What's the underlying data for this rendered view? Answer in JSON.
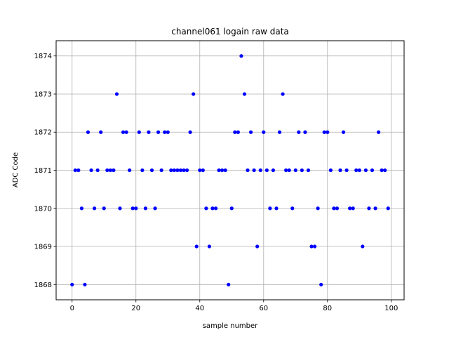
{
  "chart_data": {
    "type": "scatter",
    "title": "channel061 logain raw data",
    "xlabel": "sample number",
    "ylabel": "ADC Code",
    "xlim": [
      -5,
      104
    ],
    "ylim": [
      1867.6,
      1874.4
    ],
    "xticks": [
      0,
      20,
      40,
      60,
      80,
      100
    ],
    "yticks": [
      1868,
      1869,
      1870,
      1871,
      1872,
      1873,
      1874
    ],
    "grid": true,
    "marker_color": "#0000ff",
    "series": [
      {
        "x": [
          0,
          1,
          2,
          3,
          4,
          5,
          6,
          7,
          8,
          9,
          10,
          11,
          12,
          13,
          14,
          15,
          16,
          17,
          18,
          19,
          20,
          21,
          22,
          23,
          24,
          25,
          26,
          27,
          28,
          29,
          30,
          31,
          32,
          33,
          34,
          35,
          36,
          37,
          38,
          39,
          40,
          41,
          42,
          43,
          44,
          45,
          46,
          47,
          48,
          49,
          50,
          51,
          52,
          53,
          54,
          55,
          56,
          57,
          58,
          59,
          60,
          61,
          62,
          63,
          64,
          65,
          66,
          67,
          68,
          69,
          70,
          71,
          72,
          73,
          74,
          75,
          76,
          77,
          78,
          79,
          80,
          81,
          82,
          83,
          84,
          85,
          86,
          87,
          88,
          89,
          90,
          91,
          92,
          93,
          94,
          95,
          96,
          97,
          98,
          99
        ],
        "y": [
          1868,
          1871,
          1871,
          1870,
          1868,
          1872,
          1871,
          1870,
          1871,
          1872,
          1870,
          1871,
          1871,
          1871,
          1873,
          1870,
          1872,
          1872,
          1871,
          1870,
          1870,
          1872,
          1871,
          1870,
          1872,
          1871,
          1870,
          1872,
          1871,
          1872,
          1872,
          1871,
          1871,
          1871,
          1871,
          1871,
          1871,
          1872,
          1873,
          1869,
          1871,
          1871,
          1870,
          1869,
          1870,
          1870,
          1871,
          1871,
          1871,
          1868,
          1870,
          1872,
          1872,
          1874,
          1873,
          1871,
          1872,
          1871,
          1869,
          1871,
          1872,
          1871,
          1870,
          1871,
          1870,
          1872,
          1873,
          1871,
          1871,
          1870,
          1871,
          1872,
          1871,
          1872,
          1871,
          1869,
          1869,
          1870,
          1868,
          1872,
          1872,
          1871,
          1870,
          1870,
          1871,
          1872,
          1871,
          1870,
          1870,
          1871,
          1871,
          1869,
          1871,
          1870,
          1871,
          1870,
          1872,
          1871,
          1871,
          1870
        ]
      }
    ]
  }
}
